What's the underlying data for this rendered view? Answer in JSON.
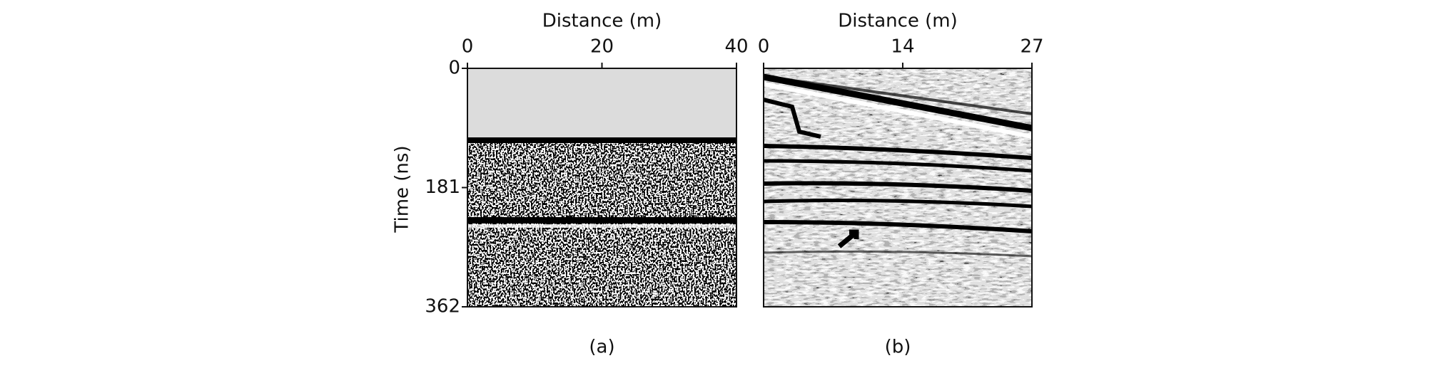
{
  "chart_data": [
    {
      "type": "image",
      "x_label": "Distance (m)",
      "y_label": "Time (ns)",
      "xlim": [
        0,
        40
      ],
      "xticks": [
        0,
        20,
        40
      ],
      "ylim": [
        0,
        362
      ],
      "yticks": [
        0,
        181,
        362
      ],
      "y_inverted": true,
      "caption": "(a)"
    },
    {
      "type": "image",
      "x_label": "Distance (m)",
      "xlim": [
        0,
        27
      ],
      "xticks": [
        0,
        14,
        27
      ],
      "caption": "(b)"
    }
  ]
}
